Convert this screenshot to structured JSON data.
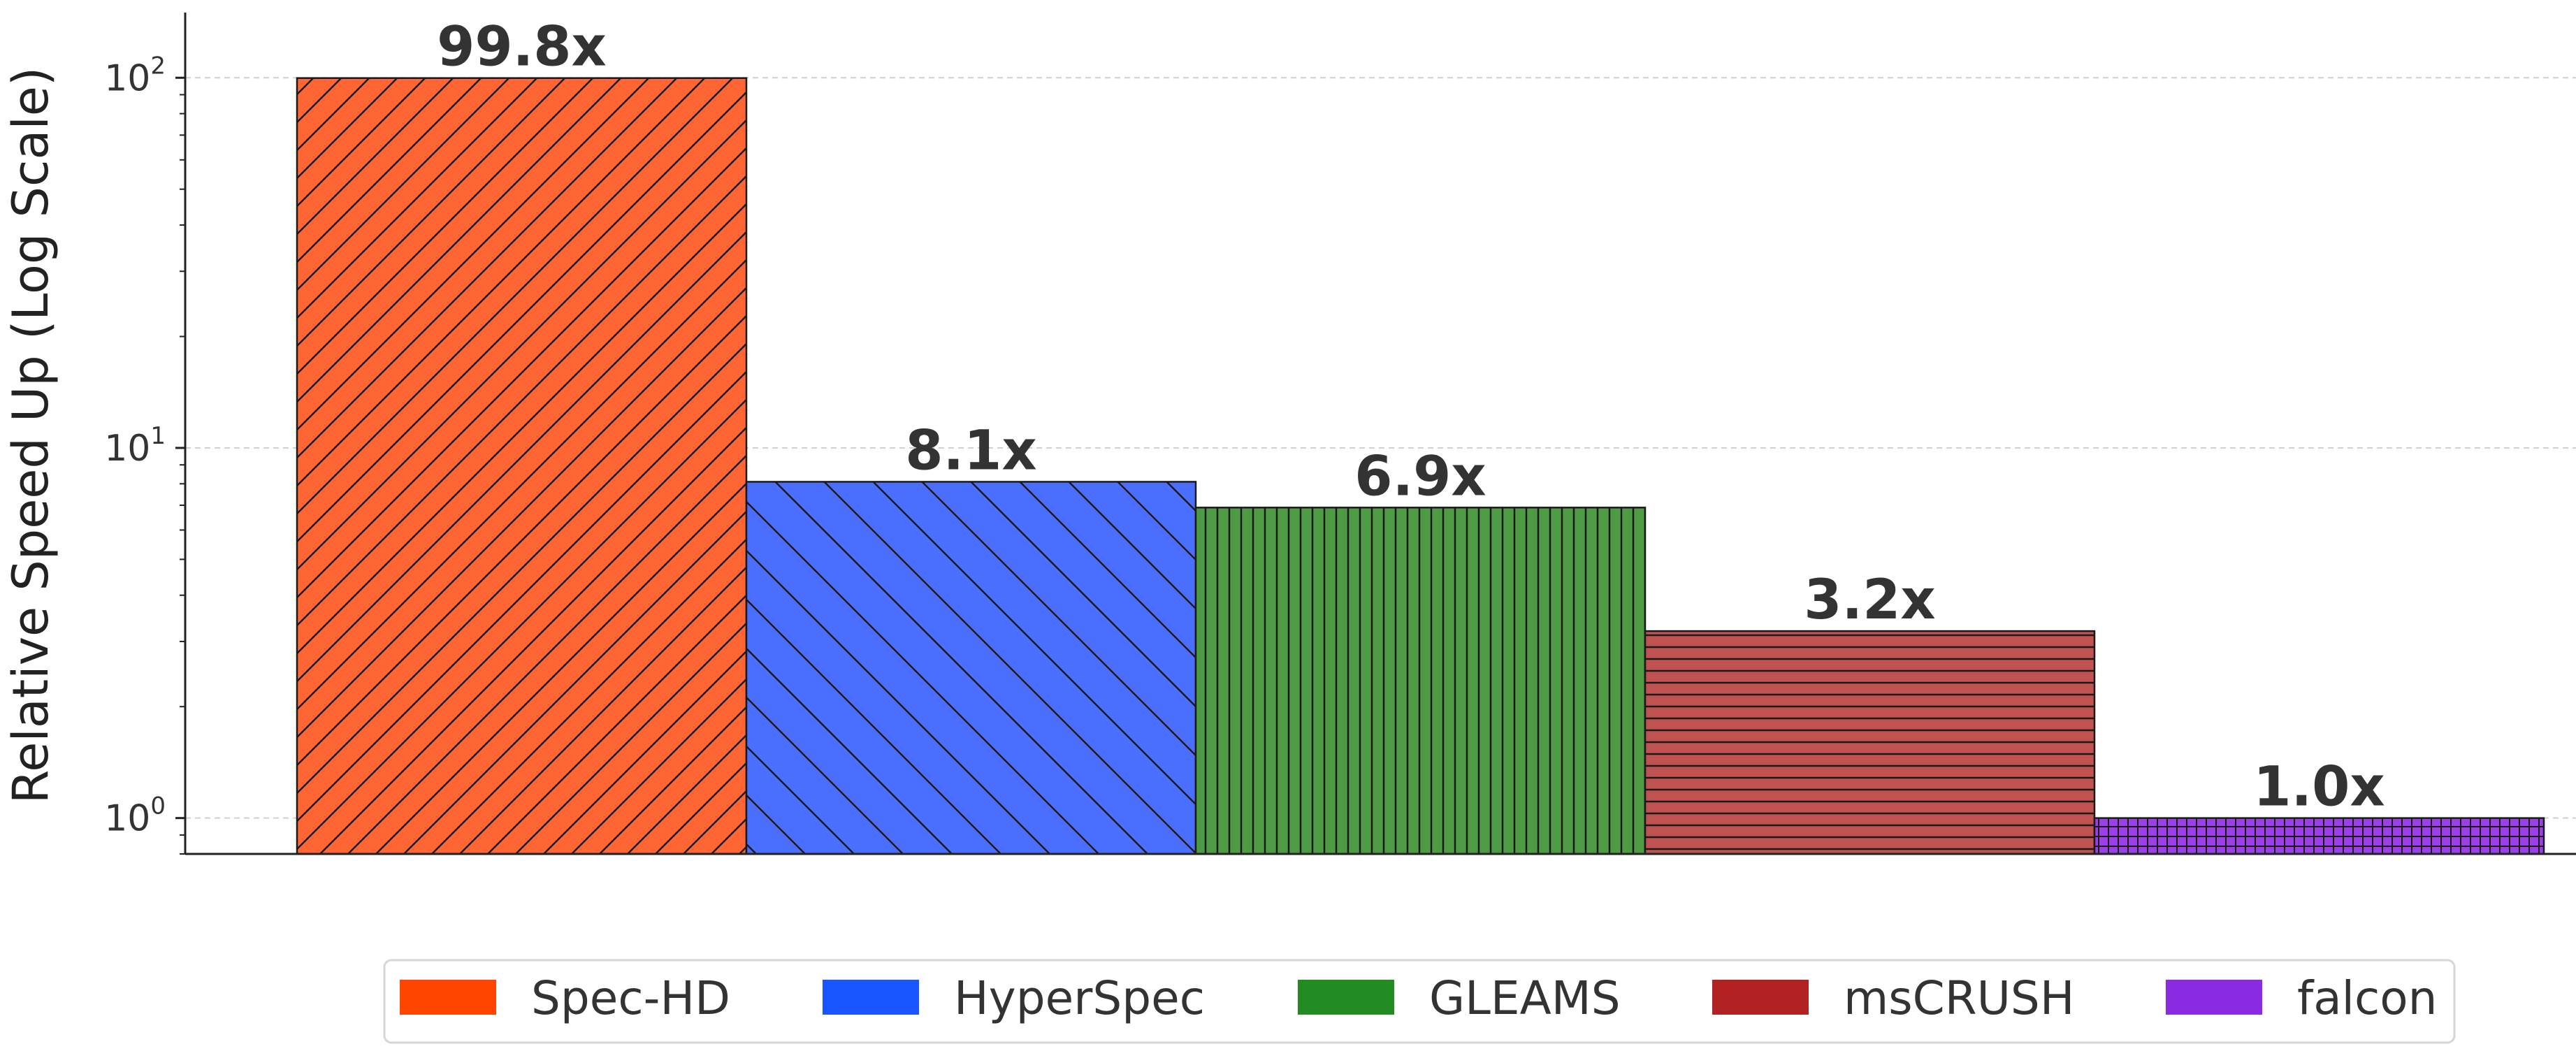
{
  "chart_data": {
    "type": "bar",
    "categories": [
      "Spec-HD",
      "HyperSpec",
      "GLEAMS",
      "msCRUSH",
      "falcon"
    ],
    "values": [
      99.8,
      8.1,
      6.9,
      3.2,
      1.0
    ],
    "data_labels": [
      "99.8x",
      "8.1x",
      "6.9x",
      "3.2x",
      "1.0x"
    ],
    "title": "",
    "xlabel": "",
    "ylabel": "Relative Speed Up (Log Scale)",
    "yscale": "log",
    "ylim": [
      0.8,
      150
    ],
    "yticks": [
      {
        "base": "10",
        "exp": "0",
        "value": 1
      },
      {
        "base": "10",
        "exp": "1",
        "value": 10
      },
      {
        "base": "10",
        "exp": "2",
        "value": 100
      }
    ],
    "grid": true,
    "legend_position": "bottom-center",
    "colors": [
      "#ff6633",
      "#4a6fff",
      "#4f9a45",
      "#c05252",
      "#9a40e6"
    ],
    "legend_colors": [
      "#ff4500",
      "#1a56ff",
      "#228b22",
      "#b22222",
      "#8a2be2"
    ],
    "hatches": [
      "diagonal-dense",
      "backdiagonal-sparse",
      "vertical",
      "horizontal",
      "grid"
    ],
    "legend": {
      "entries": [
        "Spec-HD",
        "HyperSpec",
        "GLEAMS",
        "msCRUSH",
        "falcon"
      ]
    }
  }
}
